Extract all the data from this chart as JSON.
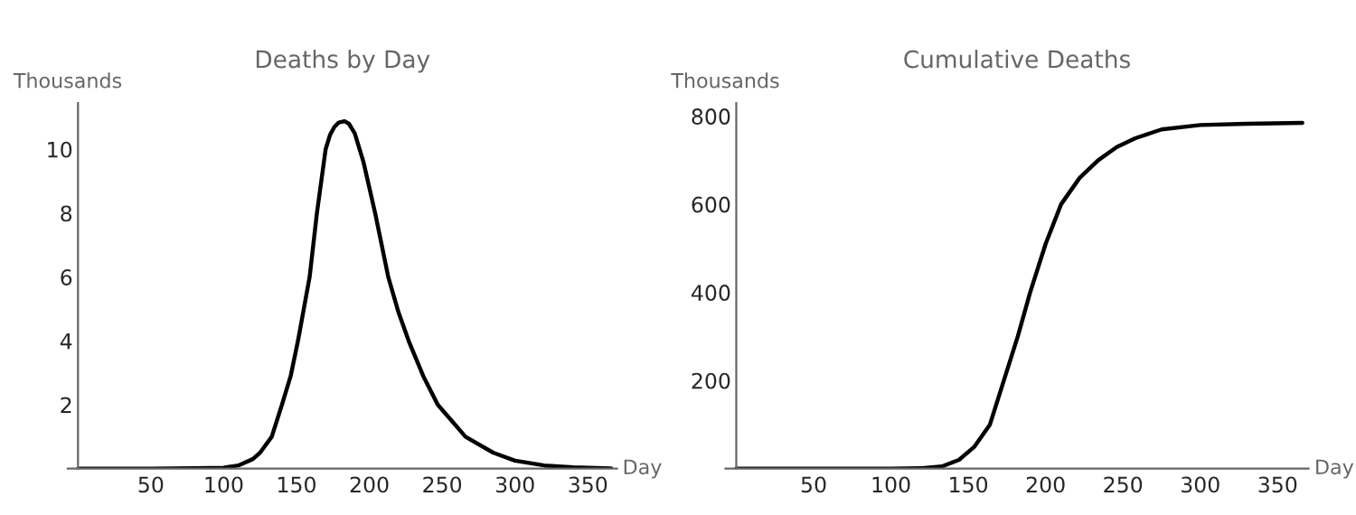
{
  "chart_data": [
    {
      "type": "line",
      "title": "Deaths by Day",
      "xlabel": "Day",
      "ylabel": "Thousands",
      "xlim": [
        -7,
        370
      ],
      "ylim": [
        0,
        11.45
      ],
      "xticks": [
        50,
        100,
        150,
        200,
        250,
        300,
        350
      ],
      "yticks": [
        2,
        4,
        6,
        8,
        10
      ],
      "grid": false,
      "legend": false,
      "series": [
        {
          "color": "#000000",
          "x": [
            0,
            50,
            80,
            100,
            110,
            120,
            125,
            133,
            140,
            146,
            151,
            159,
            164,
            170,
            173,
            176,
            179,
            183,
            186,
            190,
            196,
            204,
            213,
            220,
            227,
            237,
            247,
            266,
            285,
            300,
            320,
            340,
            366
          ],
          "values": [
            0,
            0,
            0.01,
            0.03,
            0.1,
            0.3,
            0.5,
            1,
            2,
            2.9,
            4,
            6,
            8,
            10,
            10.45,
            10.7,
            10.84,
            10.88,
            10.8,
            10.5,
            9.6,
            8,
            6,
            4.9,
            4,
            2.9,
            2,
            1,
            0.5,
            0.25,
            0.1,
            0.04,
            0.01
          ]
        }
      ]
    },
    {
      "type": "line",
      "title": "Cumulative Deaths",
      "xlabel": "Day",
      "ylabel": "Thousands",
      "xlim": [
        -7,
        370
      ],
      "ylim": [
        0,
        830
      ],
      "xticks": [
        50,
        100,
        150,
        200,
        250,
        300,
        350
      ],
      "yticks": [
        200,
        400,
        600,
        800
      ],
      "grid": false,
      "legend": false,
      "series": [
        {
          "color": "#000000",
          "x": [
            0,
            50,
            100,
            120,
            133,
            144,
            154,
            164,
            173,
            182,
            190,
            200,
            210,
            222,
            234,
            246,
            258,
            275,
            300,
            330,
            366
          ],
          "values": [
            0,
            0,
            0,
            1,
            5,
            20,
            50,
            100,
            200,
            300,
            400,
            510,
            600,
            660,
            700,
            730,
            750,
            770,
            780,
            783,
            785
          ]
        }
      ]
    }
  ]
}
